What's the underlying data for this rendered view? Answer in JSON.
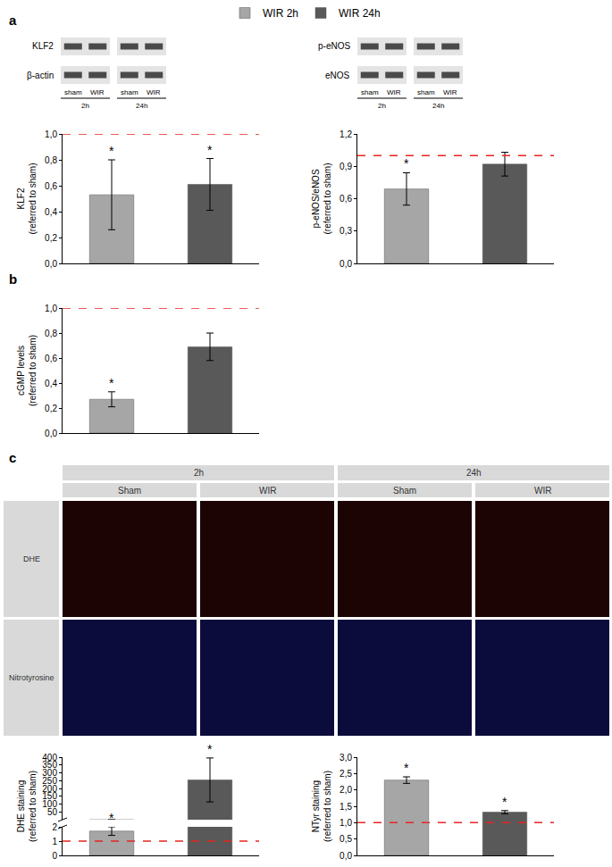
{
  "panel_labels": [
    "a",
    "b",
    "c"
  ],
  "blots": [
    {
      "rows": [
        "KLF2",
        "β-actin"
      ],
      "groups": [
        {
          "label": "2h",
          "lanes": [
            "sham",
            "WIR"
          ]
        },
        {
          "label": "24h",
          "lanes": [
            "sham",
            "WIR"
          ]
        }
      ]
    },
    {
      "rows": [
        "p-eNOS",
        "eNOS"
      ],
      "groups": [
        {
          "label": "2h",
          "lanes": [
            "sham",
            "WIR"
          ]
        },
        {
          "label": "24h",
          "lanes": [
            "sham",
            "WIR"
          ]
        }
      ]
    }
  ],
  "micrographs": {
    "columns": [
      {
        "label": "2h",
        "groups": [
          "Sham",
          "WIR"
        ]
      },
      {
        "label": "24h",
        "groups": [
          "Sham",
          "WIR"
        ]
      }
    ],
    "rows": [
      "DHE",
      "Nitrotyrosine"
    ]
  },
  "chart_data": [
    {
      "type": "bar",
      "y_label": "KLF2\n(referred to sham)",
      "categories": [
        "WIR 2h",
        "WIR 24h"
      ],
      "colors": [
        "#a6a6a6",
        "#595959"
      ],
      "values": [
        0.53,
        0.61
      ],
      "errors": [
        0.27,
        0.2
      ],
      "significance": [
        "*",
        "*"
      ],
      "ylim": [
        0,
        1
      ],
      "yticks": [
        {
          "value": 0,
          "label": "0,0"
        },
        {
          "value": 0.2,
          "label": "0,2"
        },
        {
          "value": 0.4,
          "label": "0,4"
        },
        {
          "value": 0.6,
          "label": "0,6"
        },
        {
          "value": 0.8,
          "label": "0,8"
        },
        {
          "value": 1,
          "label": "1,0"
        }
      ],
      "reference_line": {
        "value": 1,
        "color": "#e8261f",
        "line_style": "dash"
      },
      "grid": false,
      "tick_labels": "y",
      "legend": "top"
    },
    {
      "type": "bar",
      "y_label": "p-eNOS/eNOS\n(referred to sham)",
      "categories": [
        "WIR 2h",
        "WIR 24h"
      ],
      "colors": [
        "#a6a6a6",
        "#595959"
      ],
      "values": [
        0.69,
        0.92
      ],
      "errors": [
        0.15,
        0.11
      ],
      "significance": [
        "*",
        null
      ],
      "ylim": [
        0,
        1.2
      ],
      "yticks": [
        {
          "value": 0,
          "label": "0,0"
        },
        {
          "value": 0.3,
          "label": "0,3"
        },
        {
          "value": 0.6,
          "label": "0,6"
        },
        {
          "value": 0.9,
          "label": "0,9"
        },
        {
          "value": 1.2,
          "label": "1,2"
        }
      ],
      "reference_line": {
        "value": 1,
        "color": "#e8261f",
        "line_style": "dash"
      },
      "grid": false,
      "tick_labels": "y"
    },
    {
      "type": "bar",
      "y_label": "cGMP levels\n(referred to sham)",
      "categories": [
        "WIR 2h",
        "WIR 24h"
      ],
      "colors": [
        "#a6a6a6",
        "#595959"
      ],
      "values": [
        0.27,
        0.69
      ],
      "errors": [
        0.06,
        0.11
      ],
      "significance": [
        "*",
        null
      ],
      "ylim": [
        0,
        1
      ],
      "yticks": [
        {
          "value": 0,
          "label": "0,0"
        },
        {
          "value": 0.2,
          "label": "0,2"
        },
        {
          "value": 0.4,
          "label": "0,4"
        },
        {
          "value": 0.6,
          "label": "0,6"
        },
        {
          "value": 0.8,
          "label": "0,8"
        },
        {
          "value": 1,
          "label": "1,0"
        }
      ],
      "reference_line": {
        "value": 1,
        "color": "#e8261f",
        "line_style": "dash"
      },
      "grid": false,
      "tick_labels": "y"
    },
    {
      "type": "bar",
      "y_label": "DHE staining\n(referred to sham)",
      "categories": [
        "WIR 2h",
        "WIR 24h"
      ],
      "colors": [
        "#a6a6a6",
        "#595959"
      ],
      "values": [
        1.7,
        255
      ],
      "errors": [
        0.3,
        140
      ],
      "significance": [
        "*",
        "*"
      ],
      "y_segments": [
        {
          "ylim": [
            0,
            2
          ],
          "yticks": [
            0,
            1,
            2
          ]
        },
        {
          "ylim": [
            2,
            400
          ],
          "yticks": [
            50,
            100,
            150,
            200,
            250,
            300,
            350,
            400
          ]
        }
      ],
      "reference_line": {
        "value": 1,
        "color": "#e8261f",
        "line_style": "dash"
      },
      "grid": false,
      "tick_labels": "y"
    },
    {
      "type": "bar",
      "y_label": "NTyr staining\n(referred to sham)",
      "categories": [
        "WIR 2h",
        "WIR 24h"
      ],
      "colors": [
        "#a6a6a6",
        "#595959"
      ],
      "values": [
        2.3,
        1.32
      ],
      "errors": [
        0.1,
        0.05
      ],
      "significance": [
        "*",
        "*"
      ],
      "ylim": [
        0,
        3
      ],
      "yticks": [
        {
          "value": 0,
          "label": "0,0"
        },
        {
          "value": 0.5,
          "label": "0,5"
        },
        {
          "value": 1,
          "label": "1,0"
        },
        {
          "value": 1.5,
          "label": "1,5"
        },
        {
          "value": 2,
          "label": "2,0"
        },
        {
          "value": 2.5,
          "label": "2,5"
        },
        {
          "value": 3,
          "label": "3,0"
        }
      ],
      "reference_line": {
        "value": 1,
        "color": "#e8261f",
        "line_style": "dash"
      },
      "grid": false,
      "tick_labels": "y"
    }
  ]
}
